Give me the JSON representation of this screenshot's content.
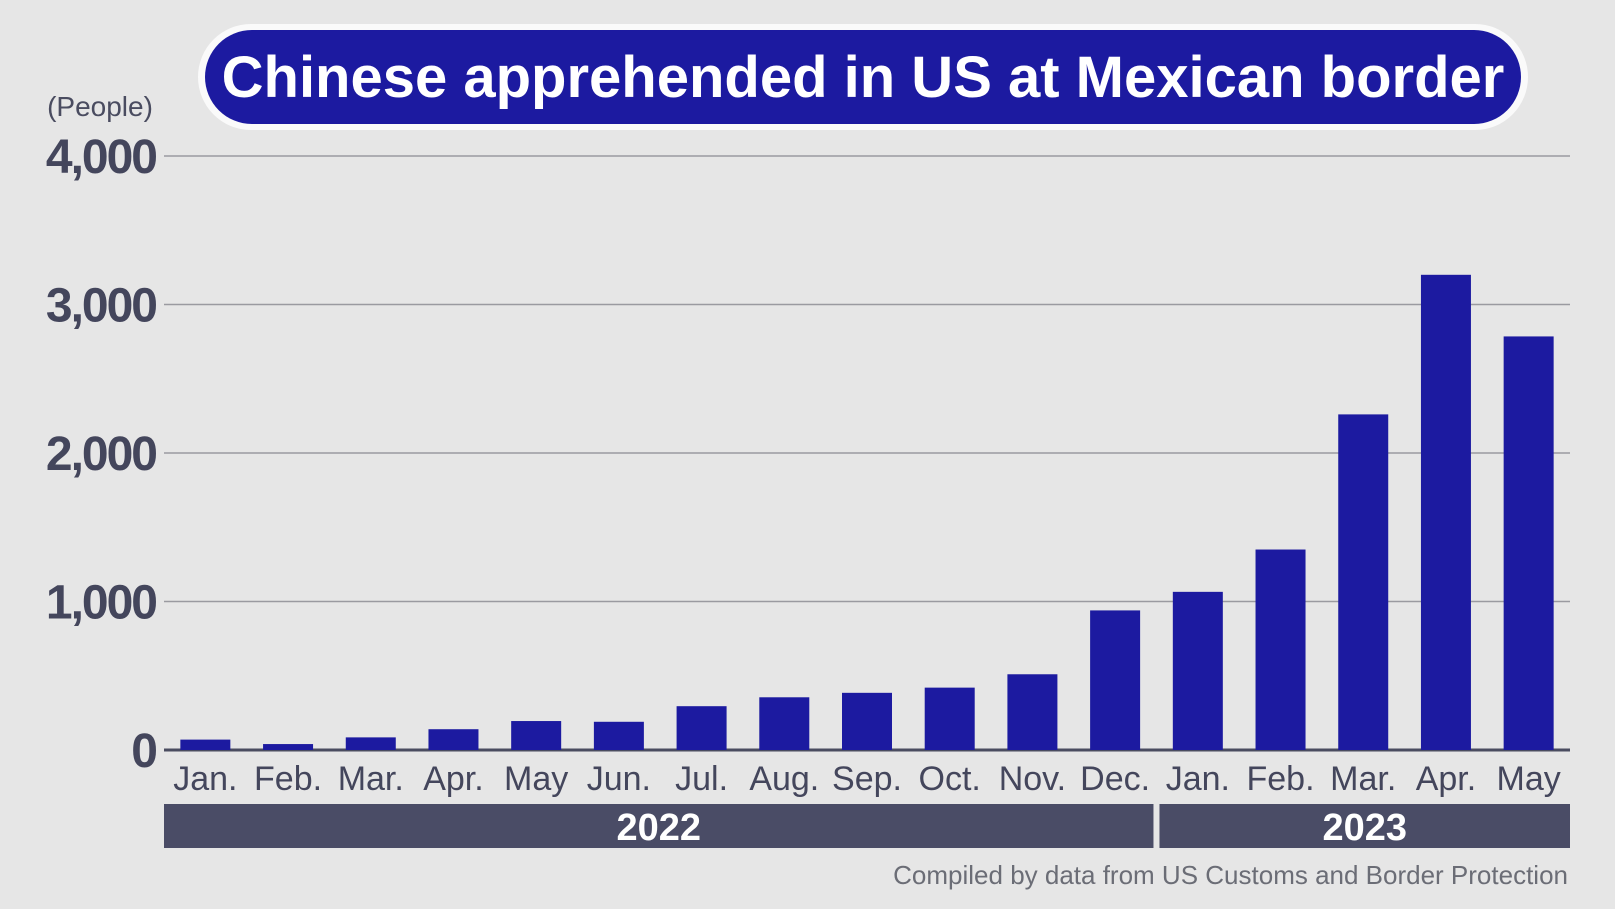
{
  "chart_data": {
    "type": "bar",
    "title": "Chinese apprehended in US at Mexican border",
    "ylabel": "(People)",
    "ylim": [
      0,
      4000
    ],
    "yticks": [
      "0",
      "1,000",
      "2,000",
      "3,000",
      "4,000"
    ],
    "ytick_values": [
      0,
      1000,
      2000,
      3000,
      4000
    ],
    "categories": [
      "Jan.",
      "Feb.",
      "Mar.",
      "Apr.",
      "May",
      "Jun.",
      "Jul.",
      "Aug.",
      "Sep.",
      "Oct.",
      "Nov.",
      "Dec.",
      "Jan.",
      "Feb.",
      "Mar.",
      "Apr.",
      "May"
    ],
    "values": [
      70,
      40,
      85,
      140,
      195,
      190,
      295,
      355,
      385,
      420,
      510,
      940,
      1065,
      1350,
      2260,
      3200,
      2785
    ],
    "groups": [
      {
        "label": "2022",
        "count": 12
      },
      {
        "label": "2023",
        "count": 5
      }
    ],
    "grid": true,
    "bar_color": "#1c1aa0",
    "source": "Compiled by data from US Customs and Border Protection"
  }
}
